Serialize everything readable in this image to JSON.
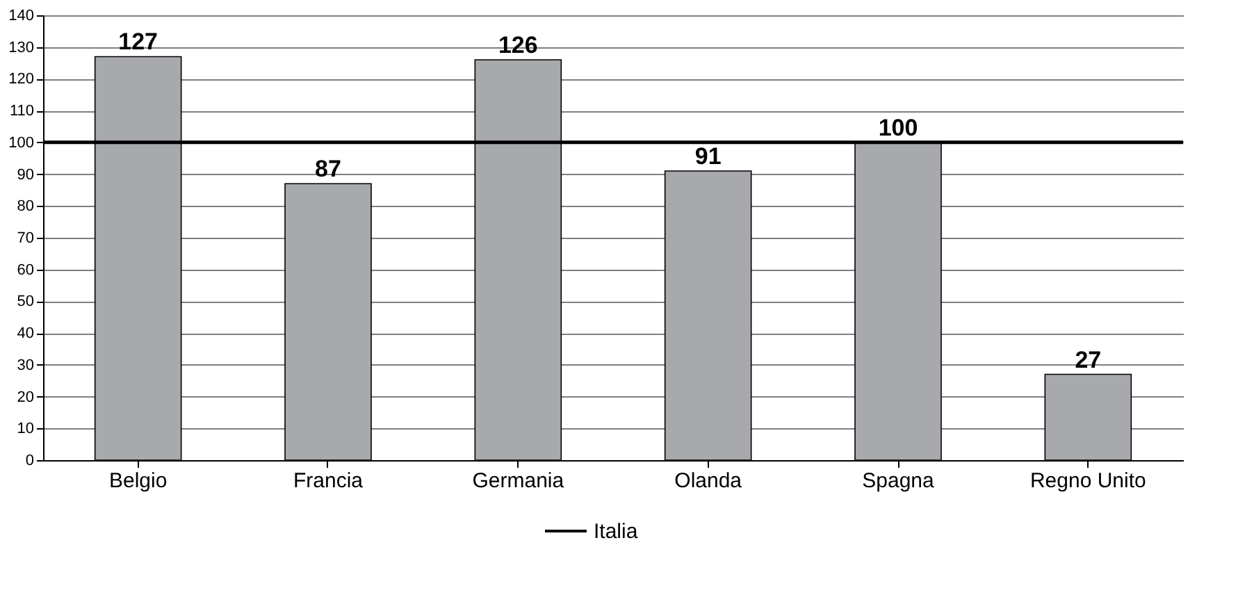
{
  "chart_data": {
    "type": "bar",
    "categories": [
      "Belgio",
      "Francia",
      "Germania",
      "Olanda",
      "Spagna",
      "Regno Unito"
    ],
    "values": [
      127,
      87,
      126,
      91,
      100,
      27
    ],
    "color": "#a7a9ac",
    "data_labels": true,
    "ylim": [
      0,
      140
    ],
    "yticks": [
      0,
      10,
      20,
      30,
      40,
      50,
      60,
      70,
      80,
      90,
      100,
      110,
      120,
      130,
      140
    ],
    "grid": "y",
    "legend": "bottom",
    "ref_lines": [
      {
        "axis": "y",
        "value": 100,
        "label": "Italia",
        "color": "#000000"
      }
    ]
  }
}
